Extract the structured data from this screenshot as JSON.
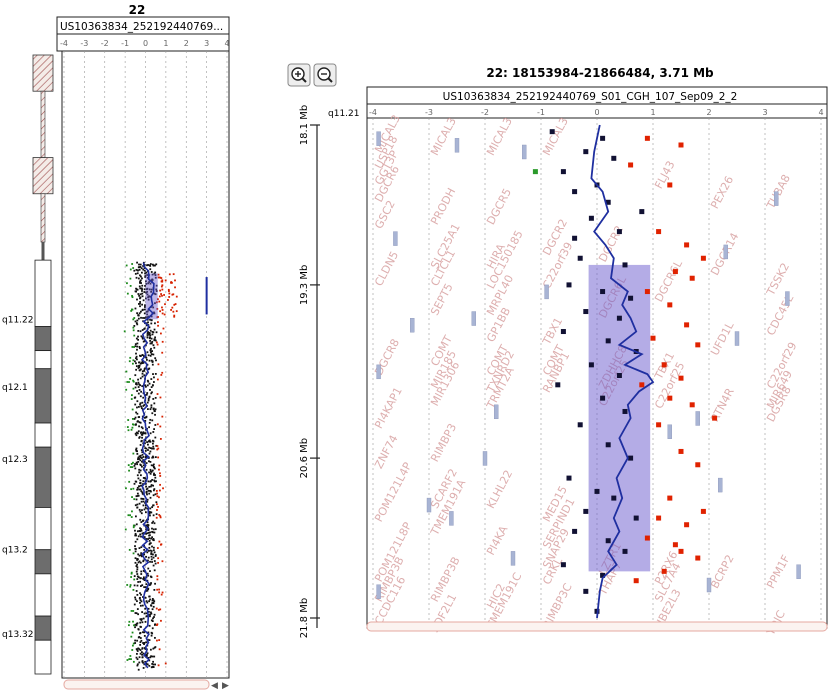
{
  "genome_view": {
    "chromosome_label": "22",
    "sample_header": "US10363834_252192440769...",
    "tick_labels": [
      "-4",
      "-3",
      "-2",
      "-1",
      "0",
      "1",
      "2",
      "3",
      "4"
    ],
    "band_labels": [
      {
        "label": "q11.22",
        "mb": 21.9
      },
      {
        "label": "q12.1",
        "mb": 27.5
      },
      {
        "label": "q12.3",
        "mb": 33.5
      },
      {
        "label": "q13.2",
        "mb": 41.0
      },
      {
        "label": "q13.32",
        "mb": 48.0
      }
    ],
    "bands": [
      {
        "start": 0,
        "end": 3.0,
        "type": "acen"
      },
      {
        "start": 3.0,
        "end": 8.5,
        "type": "stalk"
      },
      {
        "start": 8.5,
        "end": 11.5,
        "type": "acen"
      },
      {
        "start": 11.5,
        "end": 15.5,
        "type": "stalk"
      },
      {
        "start": 15.5,
        "end": 17.0,
        "type": "stalk-thin"
      },
      {
        "start": 17.0,
        "end": 22.5,
        "type": "light"
      },
      {
        "start": 22.5,
        "end": 24.5,
        "type": "dark"
      },
      {
        "start": 24.5,
        "end": 26.0,
        "type": "light"
      },
      {
        "start": 26.0,
        "end": 30.5,
        "type": "dark"
      },
      {
        "start": 30.5,
        "end": 32.5,
        "type": "light"
      },
      {
        "start": 32.5,
        "end": 37.5,
        "type": "dark"
      },
      {
        "start": 37.5,
        "end": 41.0,
        "type": "light"
      },
      {
        "start": 41.0,
        "end": 43.0,
        "type": "dark"
      },
      {
        "start": 43.0,
        "end": 46.5,
        "type": "light"
      },
      {
        "start": 46.5,
        "end": 48.5,
        "type": "dark"
      },
      {
        "start": 48.5,
        "end": 51.3,
        "type": "light"
      }
    ],
    "scroll_arrows": [
      "◀",
      "▶"
    ]
  },
  "zoom_view": {
    "title": "22: 18153984-21866484, 3.71 Mb",
    "sample_header": "US10363834_252192440769_S01_CGH_107_Sep09_2_2",
    "band_label": "q11.21",
    "tick_labels": [
      "-4",
      "-3",
      "-2",
      "-1",
      "0",
      "1",
      "2",
      "3",
      "4"
    ],
    "mb_labels": [
      "18.1 Mb",
      "19.3 Mb",
      "20.6 Mb",
      "21.8 Mb"
    ],
    "zoom_in_icon": "zoom-in-icon",
    "zoom_out_icon": "zoom-out-icon",
    "gene_labels": [
      {
        "t": "MICAL3",
        "col": 0,
        "mb": 18.18
      },
      {
        "t": "USP18",
        "col": 0,
        "mb": 18.3
      },
      {
        "t": "GGT3P",
        "col": 0,
        "mb": 18.42
      },
      {
        "t": "DGCR6",
        "col": 0,
        "mb": 18.55
      },
      {
        "t": "GSC2",
        "col": 0,
        "mb": 18.75
      },
      {
        "t": "MICAL3",
        "col": 1,
        "mb": 18.2
      },
      {
        "t": "PRODH",
        "col": 1,
        "mb": 18.72
      },
      {
        "t": "SLC25A1",
        "col": 1,
        "mb": 19.05
      },
      {
        "t": "CLTCL1",
        "col": 1,
        "mb": 19.18
      },
      {
        "t": "MICAL3",
        "col": 2,
        "mb": 18.2
      },
      {
        "t": "DGCR5",
        "col": 2,
        "mb": 18.72
      },
      {
        "t": "HIRA",
        "col": 2,
        "mb": 19.05
      },
      {
        "t": "LOC150185",
        "col": 2,
        "mb": 19.2
      },
      {
        "t": "MRPL40",
        "col": 2,
        "mb": 19.4
      },
      {
        "t": "MICAL3",
        "col": 3,
        "mb": 18.2
      },
      {
        "t": "DGCR2",
        "col": 3,
        "mb": 18.95
      },
      {
        "t": "DGCR2",
        "col": 4,
        "mb": 19.0
      },
      {
        "t": "CLDN5",
        "col": 0,
        "mb": 19.18
      },
      {
        "t": "SEPT5",
        "col": 1,
        "mb": 19.4
      },
      {
        "t": "GP1BB",
        "col": 2,
        "mb": 19.6
      },
      {
        "t": "C22orf39",
        "col": 3,
        "mb": 19.2
      },
      {
        "t": "COMT",
        "col": 1,
        "mb": 19.78
      },
      {
        "t": "MIR185",
        "col": 1,
        "mb": 19.95
      },
      {
        "t": "COMT",
        "col": 2,
        "mb": 19.85
      },
      {
        "t": "TXNRD2",
        "col": 2,
        "mb": 19.98
      },
      {
        "t": "TBX1",
        "col": 3,
        "mb": 19.62
      },
      {
        "t": "COMT",
        "col": 3,
        "mb": 19.85
      },
      {
        "t": "RANBP1",
        "col": 3,
        "mb": 19.98
      },
      {
        "t": "ZDHHC8",
        "col": 4,
        "mb": 19.95
      },
      {
        "t": "C22orf25",
        "col": 4,
        "mb": 20.08
      },
      {
        "t": "DGCR6L",
        "col": 4,
        "mb": 19.42
      },
      {
        "t": "DGCR6L",
        "col": 5,
        "mb": 19.3
      },
      {
        "t": "TBX1",
        "col": 5,
        "mb": 19.88
      },
      {
        "t": "C22orf25",
        "col": 5,
        "mb": 20.1
      },
      {
        "t": "UFD1L",
        "col": 6,
        "mb": 19.7
      },
      {
        "t": "RTN4R",
        "col": 6,
        "mb": 20.2
      },
      {
        "t": "DGCR14",
        "col": 6,
        "mb": 19.1
      },
      {
        "t": "PEX26",
        "col": 6,
        "mb": 18.6
      },
      {
        "t": "FLJ43",
        "col": 5,
        "mb": 18.45
      },
      {
        "t": "TSSK2",
        "col": 7,
        "mb": 19.25
      },
      {
        "t": "CDC45L",
        "col": 7,
        "mb": 19.55
      },
      {
        "t": "C22orf29",
        "col": 7,
        "mb": 19.95
      },
      {
        "t": "MIR649",
        "col": 7,
        "mb": 20.1
      },
      {
        "t": "DGSR8",
        "col": 7,
        "mb": 20.2
      },
      {
        "t": "TUBA8",
        "col": 7,
        "mb": 18.6
      },
      {
        "t": "DGCR8",
        "col": 0,
        "mb": 19.85
      },
      {
        "t": "MIR1306",
        "col": 1,
        "mb": 20.08
      },
      {
        "t": "TRMT2A",
        "col": 2,
        "mb": 20.1
      },
      {
        "t": "PI4KAP1",
        "col": 0,
        "mb": 20.25
      },
      {
        "t": "RIMBP3",
        "col": 1,
        "mb": 20.5
      },
      {
        "t": "ZNF74",
        "col": 0,
        "mb": 20.55
      },
      {
        "t": "SCARF2",
        "col": 1,
        "mb": 20.85
      },
      {
        "t": "KLHL22",
        "col": 2,
        "mb": 20.85
      },
      {
        "t": "MED15",
        "col": 3,
        "mb": 20.95
      },
      {
        "t": "POM121L4P",
        "col": 0,
        "mb": 20.95
      },
      {
        "t": "TMEM191A",
        "col": 1,
        "mb": 21.05
      },
      {
        "t": "PI4KA",
        "col": 2,
        "mb": 21.2
      },
      {
        "t": "SERPIND1",
        "col": 3,
        "mb": 21.15
      },
      {
        "t": "SNAP29",
        "col": 3,
        "mb": 21.3
      },
      {
        "t": "CRKL",
        "col": 3,
        "mb": 21.42
      },
      {
        "t": "LZTR1",
        "col": 4,
        "mb": 21.35
      },
      {
        "t": "THAP7",
        "col": 4,
        "mb": 21.5
      },
      {
        "t": "P2RX6",
        "col": 5,
        "mb": 21.42
      },
      {
        "t": "SLC7A4",
        "col": 5,
        "mb": 21.55
      },
      {
        "t": "BCRP2",
        "col": 6,
        "mb": 21.45
      },
      {
        "t": "POM121L8P",
        "col": 0,
        "mb": 21.4
      },
      {
        "t": "RIMBP3B",
        "col": 0,
        "mb": 21.55
      },
      {
        "t": "CCDC116",
        "col": 0,
        "mb": 21.72
      },
      {
        "t": "RIMBP3B",
        "col": 1,
        "mb": 21.55
      },
      {
        "t": "HIC2",
        "col": 2,
        "mb": 21.6
      },
      {
        "t": "UBE2L3",
        "col": 5,
        "mb": 21.75
      },
      {
        "t": "RIMBP3C",
        "col": 3,
        "mb": 21.75
      },
      {
        "t": "YDJC",
        "col": 7,
        "mb": 21.8
      },
      {
        "t": "PPM1F",
        "col": 7,
        "mb": 21.45
      },
      {
        "t": "SDF2L1",
        "col": 1,
        "mb": 21.78
      },
      {
        "t": "TMEM191C",
        "col": 2,
        "mb": 21.75
      }
    ],
    "red_squares": [
      [
        0.9,
        18.2
      ],
      [
        1.5,
        18.25
      ],
      [
        0.6,
        18.4
      ],
      [
        1.3,
        18.55
      ],
      [
        1.1,
        18.9
      ],
      [
        1.6,
        19.0
      ],
      [
        1.9,
        19.1
      ],
      [
        1.4,
        19.2
      ],
      [
        1.7,
        19.25
      ],
      [
        0.9,
        19.35
      ],
      [
        1.3,
        19.45
      ],
      [
        1.6,
        19.6
      ],
      [
        1.0,
        19.7
      ],
      [
        1.8,
        19.75
      ],
      [
        1.2,
        19.9
      ],
      [
        1.5,
        20.0
      ],
      [
        0.8,
        20.05
      ],
      [
        1.3,
        20.15
      ],
      [
        1.7,
        20.2
      ],
      [
        1.1,
        20.35
      ],
      [
        1.5,
        20.55
      ],
      [
        1.8,
        20.65
      ],
      [
        1.3,
        20.9
      ],
      [
        1.9,
        21.0
      ],
      [
        1.1,
        21.05
      ],
      [
        1.6,
        21.1
      ],
      [
        0.9,
        21.2
      ],
      [
        1.4,
        21.25
      ],
      [
        1.8,
        21.35
      ],
      [
        1.2,
        21.45
      ],
      [
        0.7,
        21.52
      ],
      [
        1.5,
        21.3
      ],
      [
        2.1,
        20.3
      ]
    ],
    "black_squares": [
      [
        -0.8,
        18.15
      ],
      [
        0.1,
        18.2
      ],
      [
        -0.2,
        18.3
      ],
      [
        0.3,
        18.35
      ],
      [
        -0.6,
        18.45
      ],
      [
        0.0,
        18.55
      ],
      [
        -0.4,
        18.6
      ],
      [
        0.2,
        18.68
      ],
      [
        -0.1,
        18.8
      ],
      [
        0.4,
        18.9
      ],
      [
        -0.3,
        19.1
      ],
      [
        0.5,
        19.15
      ],
      [
        -0.5,
        19.3
      ],
      [
        0.1,
        19.35
      ],
      [
        0.6,
        19.4
      ],
      [
        -0.2,
        19.5
      ],
      [
        0.4,
        19.55
      ],
      [
        -0.6,
        19.65
      ],
      [
        0.2,
        19.72
      ],
      [
        0.7,
        19.8
      ],
      [
        -0.1,
        19.9
      ],
      [
        0.4,
        19.98
      ],
      [
        -0.7,
        20.05
      ],
      [
        0.1,
        20.15
      ],
      [
        0.5,
        20.25
      ],
      [
        -0.3,
        20.35
      ],
      [
        0.2,
        20.5
      ],
      [
        0.6,
        20.6
      ],
      [
        -0.5,
        20.75
      ],
      [
        0.0,
        20.85
      ],
      [
        0.3,
        20.9
      ],
      [
        -0.2,
        21.0
      ],
      [
        0.7,
        21.05
      ],
      [
        -0.4,
        21.15
      ],
      [
        0.2,
        21.22
      ],
      [
        0.5,
        21.3
      ],
      [
        -0.6,
        21.4
      ],
      [
        0.1,
        21.48
      ],
      [
        -0.2,
        21.6
      ],
      [
        0.0,
        21.75
      ],
      [
        -0.4,
        18.95
      ],
      [
        0.8,
        18.75
      ]
    ],
    "green_squares": [
      [
        -1.1,
        18.45
      ]
    ],
    "segment_line": [
      [
        0.05,
        18.1
      ],
      [
        -0.05,
        18.3
      ],
      [
        -0.1,
        18.5
      ],
      [
        0.1,
        18.6
      ],
      [
        0.2,
        18.75
      ],
      [
        -0.05,
        18.9
      ],
      [
        0.15,
        19.0
      ],
      [
        0.3,
        19.1
      ],
      [
        0.25,
        19.25
      ],
      [
        0.55,
        19.35
      ],
      [
        0.45,
        19.45
      ],
      [
        0.6,
        19.55
      ],
      [
        0.7,
        19.65
      ],
      [
        0.4,
        19.75
      ],
      [
        0.8,
        19.82
      ],
      [
        0.5,
        19.9
      ],
      [
        0.9,
        19.97
      ],
      [
        1.0,
        20.03
      ],
      [
        0.75,
        20.1
      ],
      [
        0.55,
        20.2
      ],
      [
        0.6,
        20.3
      ],
      [
        0.4,
        20.45
      ],
      [
        0.55,
        20.6
      ],
      [
        0.35,
        20.75
      ],
      [
        0.45,
        20.9
      ],
      [
        0.3,
        21.05
      ],
      [
        0.4,
        21.15
      ],
      [
        0.2,
        21.3
      ],
      [
        0.35,
        21.4
      ],
      [
        0.1,
        21.5
      ],
      [
        0.05,
        21.6
      ],
      [
        0.0,
        21.8
      ]
    ],
    "highlight": {
      "x0": -0.15,
      "x1": 0.95,
      "y0": 19.15,
      "y1": 21.45
    },
    "right_line": {
      "x": 4.25,
      "y0": 19.15,
      "y1": 21.45
    },
    "gray_bars": [
      [
        -3.9,
        18.15
      ],
      [
        -3.6,
        18.9
      ],
      [
        -3.3,
        19.55
      ],
      [
        -2.5,
        18.2
      ],
      [
        -2.2,
        19.5
      ],
      [
        -1.8,
        20.2
      ],
      [
        -1.3,
        18.25
      ],
      [
        -0.9,
        19.3
      ],
      [
        -3.9,
        19.9
      ],
      [
        1.8,
        20.25
      ],
      [
        2.2,
        20.75
      ],
      [
        2.5,
        19.65
      ],
      [
        3.2,
        18.6
      ],
      [
        3.4,
        19.35
      ],
      [
        3.6,
        21.4
      ],
      [
        -2.6,
        21.0
      ],
      [
        -3.9,
        21.55
      ],
      [
        -1.5,
        21.3
      ],
      [
        2.0,
        21.5
      ],
      [
        1.3,
        20.35
      ],
      [
        -2.0,
        20.55
      ],
      [
        -3.0,
        20.9
      ],
      [
        2.3,
        19.0
      ]
    ]
  },
  "chart_data": [
    {
      "type": "scatter",
      "title": "22",
      "subtitle": "US10363834_252192440769...",
      "xlabel": "",
      "ylabel": "",
      "xlim": [
        -4,
        4
      ],
      "ylim": [
        0,
        51.3
      ],
      "x_ticks": [
        "-4",
        "-3",
        "-2",
        "-1",
        "0",
        "1",
        "2",
        "3",
        "4"
      ],
      "series": [
        {
          "color": "#cc2200",
          "description_values": "gained probes, log ratio 0 to 1.5"
        },
        {
          "color": "#1a6d1a",
          "description_values": "lost probes, log ratio -1.5 to 0"
        },
        {
          "color": "#111111",
          "description_values": "unchanged probes around 0"
        },
        {
          "color": "#2233aa",
          "values_segment": [
            [
              0.0,
              17.0
            ],
            [
              0.15,
              18.6
            ],
            [
              0.3,
              20.0
            ],
            [
              0.1,
              21.5
            ],
            [
              0.0,
              26
            ],
            [
              0.0,
              51.3
            ]
          ]
        }
      ],
      "highlight_region": {
        "x": [
          0,
          0.6
        ],
        "y": [
          18.1,
          21.9
        ]
      },
      "band_labels": [
        "q11.22",
        "q12.1",
        "q12.3",
        "q13.2",
        "q13.32"
      ]
    },
    {
      "type": "scatter",
      "title": "22: 18153984-21866484, 3.71 Mb",
      "subtitle": "US10363834_252192440769_S01_CGH_107_Sep09_2_2",
      "xlabel": "",
      "ylabel": "",
      "xlim": [
        -4,
        4
      ],
      "ylim": [
        18.1,
        21.8
      ],
      "x_ticks": [
        "-4",
        "-3",
        "-2",
        "-1",
        "0",
        "1",
        "2",
        "3",
        "4"
      ],
      "y_ticks": [
        "18.1 Mb",
        "19.3 Mb",
        "20.6 Mb",
        "21.8 Mb"
      ],
      "series": [
        {
          "color": "#e02200",
          "values_ref": "zoom_view.red_squares"
        },
        {
          "color": "#111133",
          "values_ref": "zoom_view.black_squares"
        },
        {
          "color": "#2b9a2b",
          "values_ref": "zoom_view.green_squares"
        },
        {
          "color": "#1f2fa0",
          "values_ref": "zoom_view.segment_line"
        }
      ],
      "highlight_region": {
        "x": [
          -0.15,
          0.95
        ],
        "y": [
          19.15,
          21.45
        ]
      }
    }
  ]
}
